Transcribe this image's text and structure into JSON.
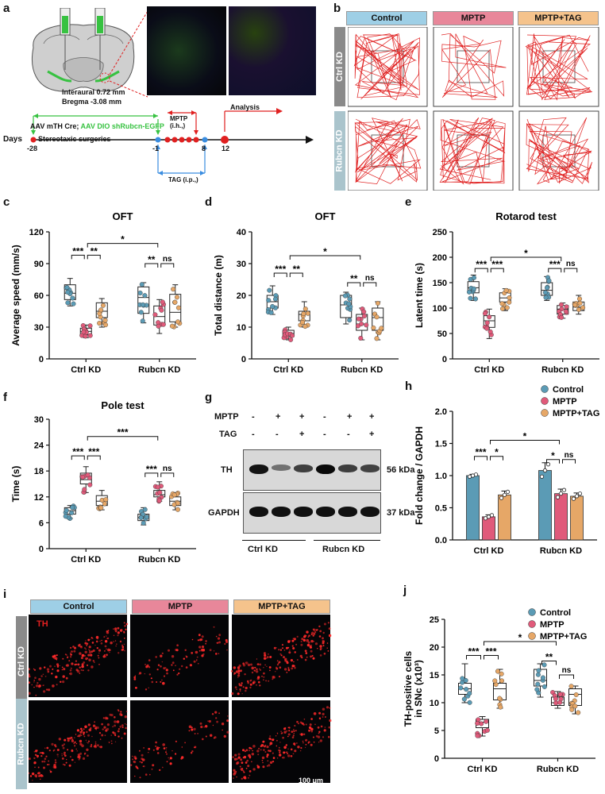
{
  "panels": {
    "a": "a",
    "b": "b",
    "c": "c",
    "d": "d",
    "e": "e",
    "f": "f",
    "g": "g",
    "h": "h",
    "i": "i",
    "j": "j"
  },
  "colors": {
    "control": "#5b9bb5",
    "mptp": "#e05a7a",
    "mptp_tag": "#e6a767",
    "control_hdr": "#9ecfe6",
    "mptp_hdr": "#e8879a",
    "tag_hdr": "#f5c38c",
    "ctrl_side": "#8a8a8a",
    "rubcn_side": "#aac4cc",
    "timeline_green": "#37c241",
    "timeline_red": "#e02020",
    "timeline_blue": "#3a8de0"
  },
  "panel_a": {
    "interaural": "Interaural 0.72 mm",
    "bregma": "Bregma -3.08 mm",
    "aav_black": "AAV mTH Cre; ",
    "aav_green": "AAV DIO shRubcn-EGFP",
    "stereotaxic": "Stereotaxic surgeries",
    "mptp": "MPTP",
    "mptp_route": "(i.h.,)",
    "analysis": "Analysis",
    "tag": "TAG (i.p.,)",
    "days": "Days",
    "ticks": [
      "-28",
      "-1",
      "8",
      "12"
    ]
  },
  "groups": [
    "Control",
    "MPTP",
    "MPTP+TAG"
  ],
  "rows": [
    "Ctrl KD",
    "Rubcn KD"
  ],
  "charts": [
    {
      "id": "c",
      "title": "OFT",
      "ylabel": "Average speed (mm/s)",
      "yticks": [
        "0",
        "30",
        "60",
        "90",
        "120"
      ],
      "ymax": 120,
      "cats": [
        "Ctrl KD",
        "Rubcn KD"
      ],
      "boxes": [
        [
          50,
          56,
          62,
          70,
          76
        ],
        [
          20,
          23,
          26,
          29,
          32
        ],
        [
          30,
          39,
          45,
          53,
          57
        ],
        [
          34,
          43,
          58,
          68,
          72
        ],
        [
          24,
          32,
          40,
          50,
          56
        ],
        [
          30,
          35,
          44,
          61,
          70
        ]
      ],
      "sig": [
        {
          "a": 0,
          "b": 1,
          "t": "***",
          "y": 98
        },
        {
          "a": 1,
          "b": 2,
          "t": "**",
          "y": 98
        },
        {
          "a": 3,
          "b": 4,
          "t": "**",
          "y": 90
        },
        {
          "a": 4,
          "b": 5,
          "t": "ns",
          "y": 90
        },
        {
          "a": 1,
          "b": 4,
          "t": "*",
          "y": 109
        }
      ]
    },
    {
      "id": "d",
      "title": "OFT",
      "ylabel": "Total distance (m)",
      "yticks": [
        "0",
        "10",
        "20",
        "30",
        "40"
      ],
      "ymax": 40,
      "cats": [
        "Ctrl KD",
        "Rubcn KD"
      ],
      "boxes": [
        [
          14,
          16,
          18,
          20,
          23
        ],
        [
          6,
          7,
          8,
          9,
          10
        ],
        [
          10,
          12,
          14,
          15,
          18
        ],
        [
          11,
          13,
          17,
          20,
          21
        ],
        [
          6,
          9,
          11,
          14,
          16
        ],
        [
          6,
          9,
          13,
          16,
          18
        ]
      ],
      "sig": [
        {
          "a": 0,
          "b": 1,
          "t": "***",
          "y": 27
        },
        {
          "a": 1,
          "b": 2,
          "t": "**",
          "y": 27
        },
        {
          "a": 3,
          "b": 4,
          "t": "**",
          "y": 24
        },
        {
          "a": 4,
          "b": 5,
          "t": "ns",
          "y": 24
        },
        {
          "a": 1,
          "b": 4,
          "t": "*",
          "y": 32.5
        }
      ]
    },
    {
      "id": "e",
      "title": "Rotarod test",
      "ylabel": "Latent time (s)",
      "yticks": [
        "0",
        "50",
        "100",
        "150",
        "200",
        "250"
      ],
      "ymax": 250,
      "cats": [
        "Ctrl KD",
        "Rubcn KD"
      ],
      "boxes": [
        [
          115,
          130,
          140,
          152,
          165
        ],
        [
          40,
          62,
          75,
          85,
          98
        ],
        [
          95,
          112,
          120,
          130,
          138
        ],
        [
          115,
          125,
          135,
          150,
          162
        ],
        [
          80,
          88,
          98,
          105,
          110
        ],
        [
          88,
          95,
          102,
          112,
          125
        ]
      ],
      "sig": [
        {
          "a": 0,
          "b": 1,
          "t": "***",
          "y": 178
        },
        {
          "a": 1,
          "b": 2,
          "t": "***",
          "y": 178
        },
        {
          "a": 3,
          "b": 4,
          "t": "***",
          "y": 178
        },
        {
          "a": 4,
          "b": 5,
          "t": "ns",
          "y": 178
        },
        {
          "a": 1,
          "b": 4,
          "t": "*",
          "y": 200
        }
      ]
    },
    {
      "id": "f",
      "title": "Pole test",
      "ylabel": "Time (s)",
      "yticks": [
        "0",
        "6",
        "12",
        "18",
        "24",
        "30"
      ],
      "ymax": 30,
      "cats": [
        "Ctrl KD",
        "Rubcn KD"
      ],
      "boxes": [
        [
          7,
          8,
          8.8,
          9.5,
          10
        ],
        [
          13,
          15,
          16,
          17.5,
          19
        ],
        [
          9,
          10,
          11,
          12.3,
          13.5
        ],
        [
          5.5,
          6.5,
          7.2,
          8,
          9.5
        ],
        [
          11,
          12,
          12.5,
          13.5,
          15.5
        ],
        [
          9,
          10,
          11,
          12,
          13
        ]
      ],
      "sig": [
        {
          "a": 0,
          "b": 1,
          "t": "***",
          "y": 21.5
        },
        {
          "a": 1,
          "b": 2,
          "t": "***",
          "y": 21.5
        },
        {
          "a": 3,
          "b": 4,
          "t": "***",
          "y": 17.5
        },
        {
          "a": 4,
          "b": 5,
          "t": "ns",
          "y": 17.5
        },
        {
          "a": 1,
          "b": 4,
          "t": "***",
          "y": 26
        }
      ]
    },
    {
      "id": "j",
      "title": "",
      "ylabel": "TH-positive cells\nin SNc (x10³)",
      "yticks": [
        "0",
        "5",
        "10",
        "15",
        "20",
        "25"
      ],
      "ymax": 25,
      "cats": [
        "Ctrl KD",
        "Rubcn KD"
      ],
      "boxes": [
        [
          10,
          11.5,
          12.5,
          13.5,
          17
        ],
        [
          4,
          5.5,
          6.5,
          7,
          7.5
        ],
        [
          9,
          10.5,
          12.5,
          13.5,
          16
        ],
        [
          11,
          13,
          14,
          16,
          17
        ],
        [
          9,
          9.5,
          10,
          11,
          12
        ],
        [
          8,
          9.5,
          11.5,
          12.5,
          13
        ]
      ],
      "sig": [
        {
          "a": 0,
          "b": 1,
          "t": "***",
          "y": 18.5
        },
        {
          "a": 1,
          "b": 2,
          "t": "***",
          "y": 18.5
        },
        {
          "a": 3,
          "b": 4,
          "t": "**",
          "y": 17.5
        },
        {
          "a": 4,
          "b": 5,
          "t": "ns",
          "y": 15
        },
        {
          "a": 1,
          "b": 4,
          "t": "*",
          "y": 21
        }
      ]
    }
  ],
  "chart_data": [
    {
      "type": "bar",
      "title": "",
      "ylabel": "Fold change / GAPDH",
      "ylim": [
        0,
        2.0
      ],
      "yticks": [
        "0.0",
        "0.5",
        "1.0",
        "1.5",
        "2.0"
      ],
      "categories": [
        "Ctrl KD",
        "Rubcn KD"
      ],
      "series": [
        {
          "name": "Control",
          "values": [
            1.0,
            1.08
          ],
          "sem": [
            0.02,
            0.12
          ]
        },
        {
          "name": "MPTP",
          "values": [
            0.36,
            0.72
          ],
          "sem": [
            0.03,
            0.07
          ]
        },
        {
          "name": "MPTP+TAG",
          "values": [
            0.7,
            0.68
          ],
          "sem": [
            0.06,
            0.05
          ]
        }
      ],
      "sig": [
        {
          "a": 0,
          "b": 1,
          "t": "***",
          "y": 1.3
        },
        {
          "a": 1,
          "b": 2,
          "t": "*",
          "y": 1.3
        },
        {
          "a": 3,
          "b": 4,
          "t": "*",
          "y": 1.25
        },
        {
          "a": 4,
          "b": 5,
          "t": "ns",
          "y": 1.25
        },
        {
          "a": 1,
          "b": 4,
          "t": "*",
          "y": 1.55
        }
      ]
    }
  ],
  "blot": {
    "mptp_label": "MPTP",
    "tag_label": "TAG",
    "mptp": [
      "-",
      "+",
      "+",
      "-",
      "+",
      "+"
    ],
    "tag": [
      "-",
      "-",
      "+",
      "-",
      "-",
      "+"
    ],
    "th": "TH",
    "gapdh": "GAPDH",
    "th_kda": "56 kDa",
    "gapdh_kda": "37 kDa",
    "ctrl": "Ctrl KD",
    "rubcn": "Rubcn KD",
    "th_levels": [
      1.0,
      0.36,
      0.7,
      1.08,
      0.72,
      0.68
    ]
  },
  "panel_i": {
    "th": "TH",
    "scale": "100 μm"
  }
}
